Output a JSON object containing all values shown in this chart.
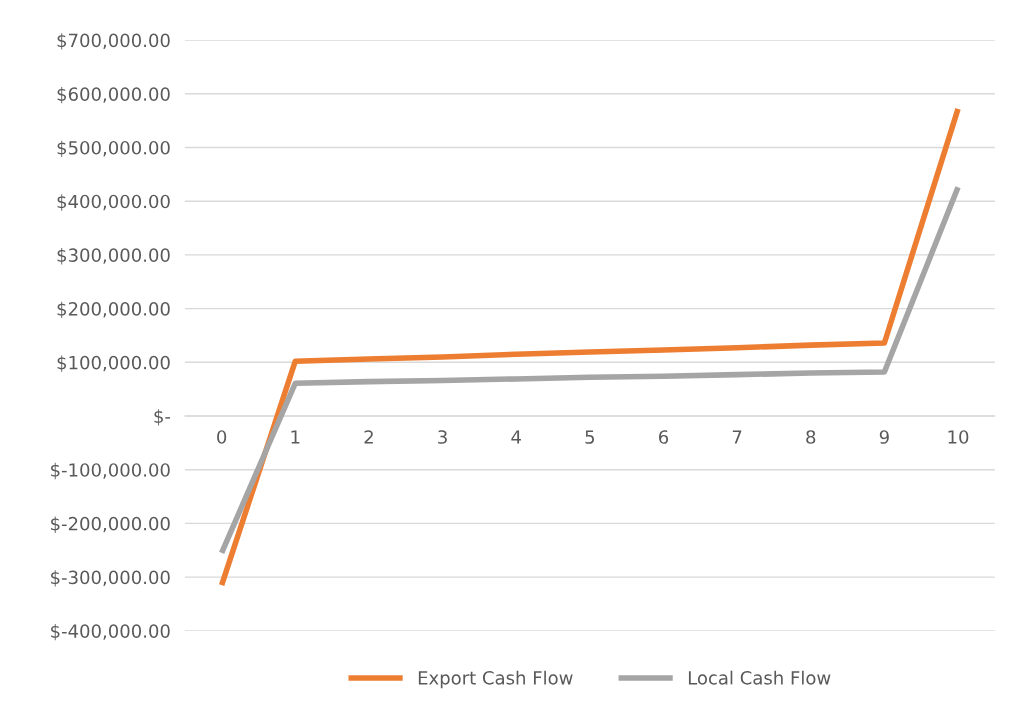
{
  "chart_data": {
    "type": "line",
    "categories": [
      "0",
      "1",
      "2",
      "3",
      "4",
      "5",
      "6",
      "7",
      "8",
      "9",
      "10"
    ],
    "series": [
      {
        "name": "Export Cash Flow",
        "color": "#ed7d31",
        "values": [
          -315000,
          102000,
          106000,
          110000,
          115000,
          119000,
          123000,
          127000,
          132000,
          136000,
          572000
        ]
      },
      {
        "name": "Local Cash Flow",
        "color": "#a5a5a5",
        "values": [
          -255000,
          61000,
          64000,
          66000,
          69000,
          72000,
          74000,
          77000,
          80000,
          82000,
          426000
        ]
      }
    ],
    "ylim": [
      -400000,
      700000
    ],
    "yticks": [
      {
        "value": -400000,
        "label": "$-400,000.00"
      },
      {
        "value": -300000,
        "label": "$-300,000.00"
      },
      {
        "value": -200000,
        "label": "$-200,000.00"
      },
      {
        "value": -100000,
        "label": "$-100,000.00"
      },
      {
        "value": 0,
        "label": "$-"
      },
      {
        "value": 100000,
        "label": "$100,000.00"
      },
      {
        "value": 200000,
        "label": "$200,000.00"
      },
      {
        "value": 300000,
        "label": "$300,000.00"
      },
      {
        "value": 400000,
        "label": "$400,000.00"
      },
      {
        "value": 500000,
        "label": "$500,000.00"
      },
      {
        "value": 600000,
        "label": "$600,000.00"
      },
      {
        "value": 700000,
        "label": "$700,000.00"
      }
    ],
    "grid": "y",
    "legend": "bottom",
    "marker": "none",
    "line_style": "solid"
  }
}
